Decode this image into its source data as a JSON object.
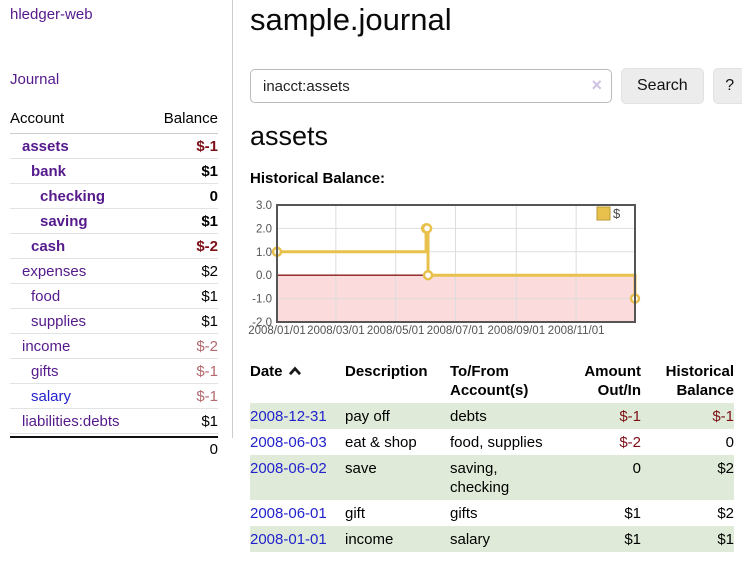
{
  "sidebar": {
    "app_title": "hledger-web",
    "nav": {
      "journal": "Journal"
    },
    "accounts_table": {
      "headers": {
        "account": "Account",
        "balance": "Balance"
      },
      "rows": [
        {
          "name": "assets",
          "depth": 1,
          "bold": true,
          "balance": "$-1"
        },
        {
          "name": "bank",
          "depth": 2,
          "bold": true,
          "balance": "$1"
        },
        {
          "name": "checking",
          "depth": 3,
          "bold": true,
          "balance": "0"
        },
        {
          "name": "saving",
          "depth": 3,
          "bold": true,
          "balance": "$1"
        },
        {
          "name": "cash",
          "depth": 2,
          "bold": true,
          "balance": "$-2"
        },
        {
          "name": "expenses",
          "depth": 1,
          "bold": false,
          "balance": "$2"
        },
        {
          "name": "food",
          "depth": 2,
          "bold": false,
          "balance": "$1"
        },
        {
          "name": "supplies",
          "depth": 2,
          "bold": false,
          "balance": "$1"
        },
        {
          "name": "income",
          "depth": 1,
          "bold": false,
          "balance": "$-2"
        },
        {
          "name": "gifts",
          "depth": 2,
          "bold": false,
          "balance": "$-1"
        },
        {
          "name": "salary",
          "depth": 2,
          "bold": false,
          "balance": "$-1",
          "link": "blue"
        },
        {
          "name": "liabilities:debts",
          "depth": 1,
          "bold": false,
          "balance": "$1"
        }
      ],
      "total": "0"
    }
  },
  "main": {
    "page_title": "sample.journal",
    "search": {
      "value": "inacct:assets",
      "clear_icon": "×",
      "search_button": "Search",
      "help_button": "?"
    },
    "section_title": "assets",
    "chart_label": "Historical Balance:"
  },
  "chart_data": {
    "type": "line",
    "title": "Historical Balance:",
    "style": "steps",
    "series": [
      {
        "name": "$",
        "color": "#E8C14D",
        "points": [
          [
            "2008-01-01",
            1
          ],
          [
            "2008-06-01",
            2
          ],
          [
            "2008-06-02",
            2
          ],
          [
            "2008-06-03",
            0
          ],
          [
            "2008-12-31",
            -1
          ]
        ]
      }
    ],
    "xlim": [
      "2008-01-01",
      "2008-12-31"
    ],
    "ylim": [
      -2,
      3
    ],
    "x_ticks": [
      {
        "date": "2008-01-01",
        "label": "2008/01/01"
      },
      {
        "date": "2008-03-01",
        "label": "2008/03/01"
      },
      {
        "date": "2008-05-01",
        "label": "2008/05/01"
      },
      {
        "date": "2008-07-01",
        "label": "2008/07/01"
      },
      {
        "date": "2008-09-01",
        "label": "2008/09/01"
      },
      {
        "date": "2008-11-01",
        "label": "2008/11/01"
      }
    ],
    "y_ticks": [
      {
        "value": 3,
        "label": "3.0"
      },
      {
        "value": 2,
        "label": "2.0"
      },
      {
        "value": 1,
        "label": "1.0"
      },
      {
        "value": 0,
        "label": "0.0"
      },
      {
        "value": -1,
        "label": "-1.0"
      },
      {
        "value": -2,
        "label": "-2.0"
      }
    ],
    "grid": true,
    "legend_position": "top-right",
    "legend_label": "$",
    "negative_region_fill": "#FBDBDB",
    "zero_line_color": "#8B1A1A",
    "axis_text_color": "#545454",
    "plot_border_color": "#555555"
  },
  "register": {
    "headers": {
      "date": "Date",
      "sort_icon": "sort-ascending",
      "description": "Description",
      "account_lines": [
        "To/From",
        "Account(s)"
      ],
      "amount_lines": [
        "Amount",
        "Out/In"
      ],
      "balance_lines": [
        "Historical",
        "Balance"
      ]
    },
    "rows": [
      {
        "date": "2008-12-31",
        "description": "pay off",
        "accounts": [
          "debts"
        ],
        "amount": "$-1",
        "balance": "$-1"
      },
      {
        "date": "2008-06-03",
        "description": "eat & shop",
        "accounts": [
          "food, supplies"
        ],
        "amount": "$-2",
        "balance": "0"
      },
      {
        "date": "2008-06-02",
        "description": "save",
        "accounts": [
          "saving,",
          "checking"
        ],
        "amount": "0",
        "balance": "$2"
      },
      {
        "date": "2008-06-01",
        "description": "gift",
        "accounts": [
          "gifts"
        ],
        "amount": "$1",
        "balance": "$2"
      },
      {
        "date": "2008-01-01",
        "description": "income",
        "accounts": [
          "salary"
        ],
        "amount": "$1",
        "balance": "$1"
      }
    ]
  },
  "colors": {
    "link_purple": "#551A8B",
    "link_blue": "#2222CC",
    "negative_strong": "#7D1016",
    "negative_soft": "#B2696D",
    "row_stripe_green": "#DFEBD8",
    "chart_line": "#E8C14D",
    "negative_region": "#FBDBDB",
    "zero_line": "#8B1A1A",
    "button_bg": "#ECECEC"
  }
}
